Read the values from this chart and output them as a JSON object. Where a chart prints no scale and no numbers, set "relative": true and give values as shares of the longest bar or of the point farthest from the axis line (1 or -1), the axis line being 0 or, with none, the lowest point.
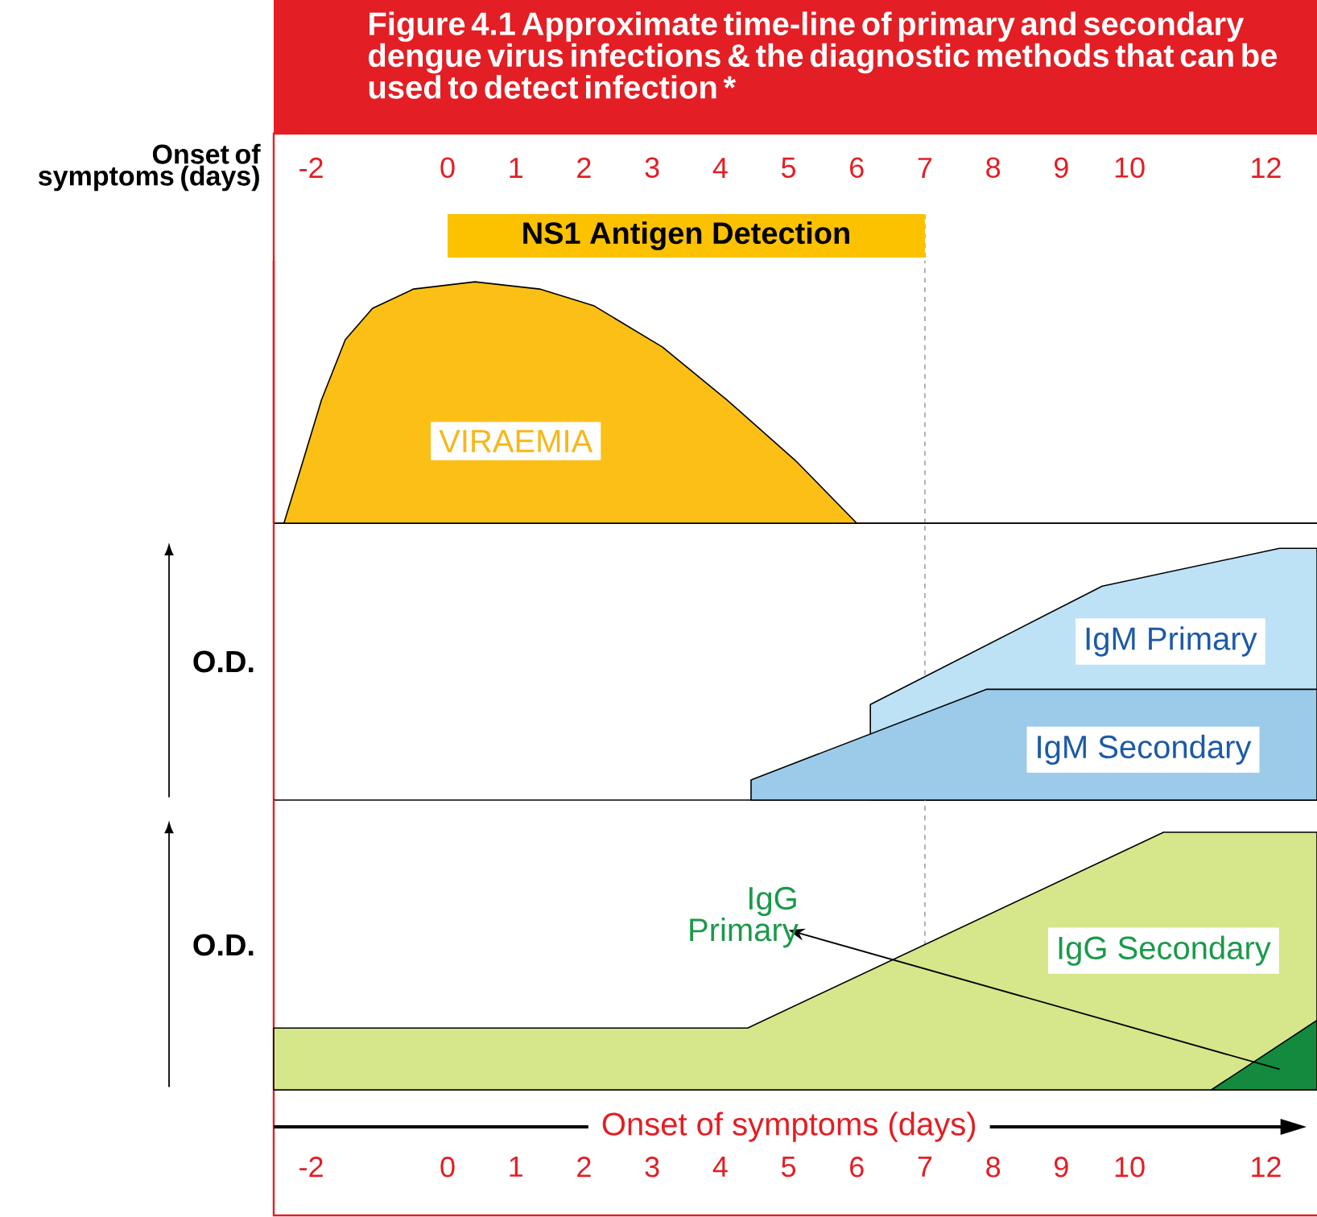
{
  "chart_data": [
    {
      "type": "bar",
      "orientation": "horizontal",
      "title": "Figure 4.1 Approximate time-line of primary and secondary dengue virus infections & the diagnostic methods that can be used to detect infection *",
      "xlabel": "Onset of symptoms (days)",
      "xlim": [
        -2.55,
        12.75
      ],
      "xticks": [
        -2,
        0,
        1,
        2,
        3,
        4,
        5,
        6,
        7,
        8,
        9,
        10,
        12
      ],
      "tick_labels": "x",
      "categories": [
        null
      ],
      "series": [
        {
          "name": "NS1 Antigen Detection",
          "color": "#fcc200",
          "values": [
            7
          ]
        }
      ],
      "ref_lines": [
        {
          "axis": "x",
          "value": 7
        }
      ]
    },
    {
      "type": "area",
      "relative": true,
      "xlim": [
        -2.55,
        12.75
      ],
      "tick_labels": false,
      "series": [
        {
          "name": "VIRAEMIA",
          "color": "#fbbf16",
          "x": [
            -2.4,
            -2.15,
            -1.85,
            -1.5,
            -1.1,
            -0.5,
            0.4,
            1.35,
            2.15,
            3.15,
            4.1,
            5.1,
            6.0
          ],
          "values": [
            0,
            0.23,
            0.51,
            0.76,
            0.89,
            0.97,
            1,
            0.97,
            0.9,
            0.73,
            0.51,
            0.26,
            0
          ]
        }
      ],
      "ref_lines": [
        {
          "axis": "x",
          "value": 7
        }
      ]
    },
    {
      "type": "area",
      "relative": true,
      "ylabel": "O.D.",
      "xlim": [
        -2.55,
        12.75
      ],
      "tick_labels": false,
      "series": [
        {
          "name": "IgM Primary",
          "color": "#bde2f6",
          "x": [
            6.2,
            9.6,
            12.2,
            12.75
          ],
          "values": [
            0.38,
            0.85,
            1,
            1
          ]
        },
        {
          "name": "IgM Secondary",
          "color": "#9ccbe9",
          "x": [
            4.45,
            7.9,
            12.75
          ],
          "values": [
            0.08,
            0.44,
            0.44
          ]
        }
      ],
      "ref_lines": [
        {
          "axis": "x",
          "value": 7
        }
      ]
    },
    {
      "type": "area",
      "relative": true,
      "ylabel": "O.D.",
      "xlabel": "Onset of symptoms (days)",
      "xlim": [
        -2.55,
        12.75
      ],
      "xticks": [
        -2,
        0,
        1,
        2,
        3,
        4,
        5,
        6,
        7,
        8,
        9,
        10,
        12
      ],
      "tick_labels": "x",
      "series": [
        {
          "name": "IgG Secondary",
          "color": "#d6e68a",
          "x": [
            -2.55,
            4.4,
            10.5,
            12.75
          ],
          "values": [
            0.24,
            0.24,
            1,
            1
          ]
        },
        {
          "name": "IgG Primary",
          "color": "#138a3e",
          "x": [
            11.2,
            12.75
          ],
          "values": [
            0,
            0.27
          ]
        }
      ],
      "ref_lines": [
        {
          "axis": "x",
          "value": 7
        }
      ]
    }
  ]
}
